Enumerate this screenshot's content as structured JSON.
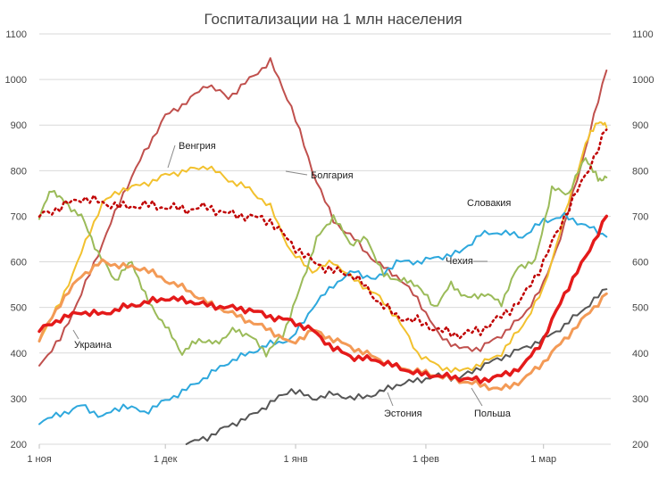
{
  "chart_data": {
    "type": "line",
    "title": "Госпитализации на 1 млн населения",
    "xlabel": "",
    "ylabel": "",
    "ylim": [
      200,
      1100
    ],
    "yticks": [
      200,
      300,
      400,
      500,
      600,
      700,
      800,
      900,
      1000,
      1100
    ],
    "ytick_labels": [
      "200",
      "300",
      "400",
      "500",
      "600",
      "700",
      "800",
      "900",
      "1000",
      "1100"
    ],
    "dual_y_axis": true,
    "xlim": [
      0,
      136
    ],
    "xticks": [
      0,
      30,
      61,
      92,
      120
    ],
    "xtick_labels": [
      "1 ноя",
      "1 дек",
      "1 янв",
      "1 фев",
      "1 мар"
    ],
    "grid": "horizontal",
    "legend": "inline labels",
    "series": [
      {
        "name": "Болгария",
        "color": "#c0504d",
        "style": "solid",
        "width": 2,
        "x": [
          0,
          5,
          10,
          15,
          20,
          25,
          30,
          35,
          40,
          45,
          50,
          55,
          60,
          65,
          70,
          75,
          80,
          85,
          90,
          95,
          100,
          105,
          110,
          115,
          120,
          125,
          130,
          135
        ],
        "y": [
          375,
          430,
          530,
          640,
          750,
          840,
          920,
          950,
          990,
          960,
          1000,
          1040,
          940,
          800,
          690,
          650,
          600,
          570,
          520,
          440,
          410,
          410,
          440,
          480,
          550,
          680,
          850,
          1020
        ],
        "label": "Болгария"
      },
      {
        "name": "Венгрия",
        "color": "#f2c12e",
        "style": "solid",
        "width": 2,
        "x": [
          0,
          5,
          10,
          15,
          20,
          25,
          30,
          35,
          40,
          45,
          50,
          55,
          60,
          65,
          70,
          75,
          80,
          85,
          90,
          95,
          100,
          105,
          110,
          115,
          120,
          125,
          130,
          133,
          135
        ],
        "y": [
          430,
          510,
          620,
          730,
          760,
          770,
          790,
          800,
          810,
          780,
          760,
          720,
          620,
          580,
          600,
          560,
          530,
          480,
          400,
          370,
          360,
          375,
          400,
          460,
          540,
          700,
          860,
          910,
          895
        ],
        "label": "Венгрия"
      },
      {
        "name": "Словакия",
        "color": "#2ea8dd",
        "style": "solid",
        "width": 2,
        "x": [
          0,
          5,
          10,
          15,
          20,
          25,
          30,
          35,
          40,
          45,
          50,
          55,
          60,
          65,
          70,
          75,
          80,
          85,
          90,
          95,
          100,
          105,
          110,
          115,
          120,
          125,
          130,
          135
        ],
        "y": [
          250,
          265,
          285,
          260,
          285,
          270,
          295,
          320,
          350,
          380,
          400,
          420,
          430,
          500,
          550,
          580,
          560,
          600,
          600,
          610,
          620,
          660,
          665,
          655,
          690,
          700,
          680,
          655
        ],
        "label": "Словакия"
      },
      {
        "name": "Чехия",
        "color": "#9bbb59",
        "style": "solid",
        "width": 2,
        "x": [
          0,
          3,
          6,
          10,
          14,
          18,
          22,
          26,
          30,
          34,
          38,
          42,
          46,
          50,
          54,
          58,
          62,
          66,
          70,
          74,
          78,
          82,
          86,
          90,
          94,
          98,
          102,
          106,
          110,
          114,
          118,
          122,
          126,
          130,
          133,
          135
        ],
        "y": [
          700,
          760,
          730,
          700,
          620,
          560,
          600,
          510,
          460,
          400,
          430,
          420,
          450,
          440,
          400,
          440,
          540,
          650,
          700,
          640,
          650,
          570,
          560,
          550,
          500,
          550,
          520,
          530,
          510,
          590,
          600,
          760,
          750,
          830,
          780,
          785
        ],
        "label": "Чехия"
      },
      {
        "name": "Эстония",
        "color": "#555555",
        "style": "solid",
        "width": 2,
        "x": [
          35,
          40,
          45,
          50,
          55,
          60,
          65,
          70,
          75,
          80,
          85,
          90,
          95,
          100,
          105,
          110,
          115,
          120,
          125,
          130,
          135
        ],
        "y": [
          200,
          215,
          240,
          260,
          290,
          320,
          300,
          310,
          300,
          310,
          330,
          340,
          350,
          345,
          370,
          390,
          410,
          430,
          460,
          500,
          540
        ],
        "label": "Эстония"
      },
      {
        "name": "Польша",
        "color": "#f39a56",
        "style": "solid",
        "width": 3,
        "x": [
          0,
          5,
          10,
          15,
          20,
          25,
          30,
          35,
          40,
          45,
          50,
          55,
          60,
          65,
          70,
          75,
          80,
          85,
          90,
          95,
          100,
          105,
          110,
          115,
          120,
          125,
          130,
          135
        ],
        "y": [
          430,
          510,
          570,
          600,
          590,
          585,
          560,
          540,
          510,
          490,
          470,
          450,
          420,
          450,
          430,
          410,
          390,
          370,
          360,
          350,
          340,
          330,
          320,
          340,
          380,
          430,
          480,
          530
        ],
        "label": "Польша"
      },
      {
        "name": "Украина",
        "color": "#e41a1a",
        "style": "solid",
        "width": 3.5,
        "x": [
          0,
          5,
          10,
          15,
          20,
          25,
          30,
          35,
          40,
          45,
          50,
          55,
          60,
          65,
          70,
          75,
          80,
          85,
          90,
          95,
          100,
          105,
          110,
          115,
          120,
          125,
          130,
          135
        ],
        "y": [
          450,
          475,
          490,
          485,
          500,
          510,
          520,
          515,
          505,
          500,
          495,
          480,
          470,
          450,
          410,
          390,
          385,
          370,
          355,
          350,
          345,
          340,
          350,
          370,
          430,
          530,
          610,
          700
        ],
        "label": "Украина"
      },
      {
        "name": "",
        "color": "#c00000",
        "style": "dotted",
        "width": 2.5,
        "x": [
          0,
          5,
          10,
          15,
          20,
          25,
          30,
          35,
          40,
          45,
          50,
          55,
          60,
          65,
          70,
          75,
          80,
          85,
          90,
          95,
          100,
          105,
          110,
          115,
          120,
          125,
          130,
          135
        ],
        "y": [
          700,
          720,
          740,
          730,
          720,
          725,
          720,
          715,
          720,
          705,
          700,
          690,
          640,
          600,
          580,
          570,
          520,
          480,
          470,
          450,
          440,
          450,
          480,
          520,
          600,
          700,
          790,
          890
        ],
        "label": ""
      }
    ],
    "annotations": [
      {
        "text": "Венгрия",
        "series": "Венгрия"
      },
      {
        "text": "Болгария",
        "series": "Болгария"
      },
      {
        "text": "Словакия",
        "series": "Словакия"
      },
      {
        "text": "Чехия",
        "series": "Чехия"
      },
      {
        "text": "Украина",
        "series": "Украина"
      },
      {
        "text": "Эстония",
        "series": "Эстония"
      },
      {
        "text": "Польша",
        "series": "Польша"
      }
    ]
  }
}
